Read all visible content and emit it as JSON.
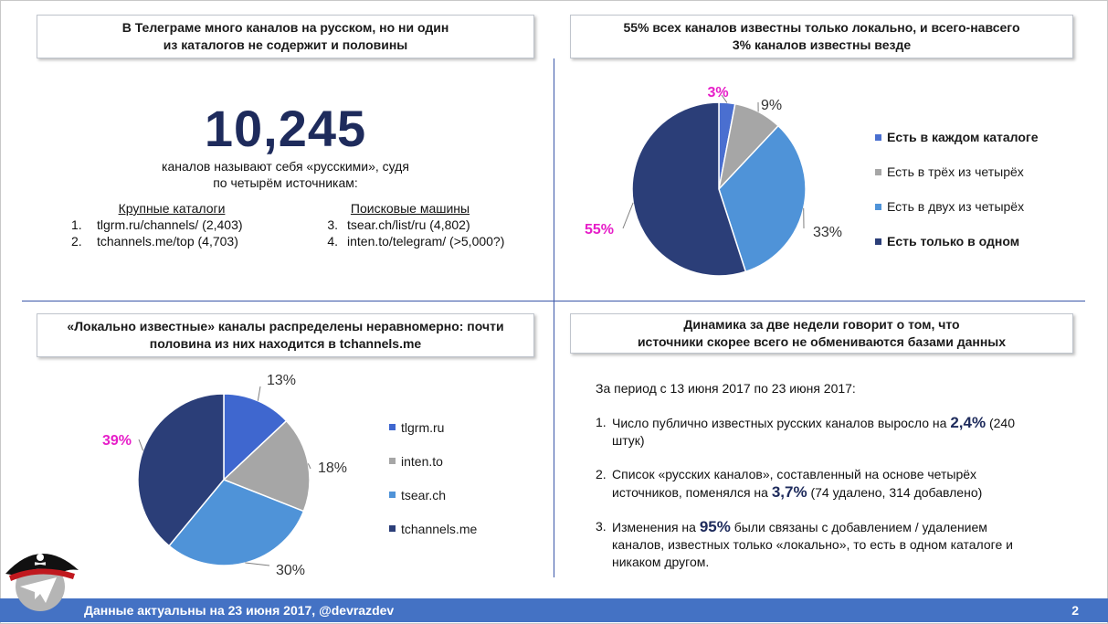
{
  "panel1": {
    "title_l1": "В Телеграме много каналов на русском, но ни один",
    "title_l2": "из каталогов не содержит и половины",
    "big_number": "10,245",
    "sub_l1": "каналов называют себя «русскими», судя",
    "sub_l2": "по четырём источникам:",
    "catalogs_header": "Крупные каталоги",
    "catalogs": [
      {
        "num": "1.",
        "text": "tlgrm.ru/channels/ (2,403)"
      },
      {
        "num": "2.",
        "text": "tchannels.me/top (4,703)"
      }
    ],
    "search_header": "Поисковые машины",
    "search": [
      {
        "num": "3.",
        "text": "tsear.ch/list/ru (4,802)"
      },
      {
        "num": "4.",
        "text": "inten.to/telegram/ (>5,000?)"
      }
    ]
  },
  "panel2": {
    "title_l1": "55% всех каналов известны только локально, и всего-навсего",
    "title_l2": "3% каналов известны везде"
  },
  "panel3": {
    "title_l1": "«Локально известные» каналы распределены неравномерно: почти",
    "title_l2": "половина из них находится в tchannels.me"
  },
  "panel4": {
    "title_l1": "Динамика за две недели говорит о том, что",
    "title_l2": "источники скорее всего не обмениваются базами данных",
    "intro": "За период с 13 июня 2017 по 23 июня 2017:",
    "items": [
      {
        "num": "1.",
        "pre": "Число публично известных русских каналов выросло на ",
        "hl": "2,4%",
        "post": " (240 штук)"
      },
      {
        "num": "2.",
        "pre": "Список «русских каналов», составленный на основе четырёх источников, поменялся на ",
        "hl": "3,7%",
        "post": " (74 удалено, 314 добавлено)"
      },
      {
        "num": "3.",
        "pre": "Изменения на ",
        "hl": "95%",
        "post": " были связаны с добавлением / удалением каналов, известных только «локально», то есть в одном каталоге и никаком другом."
      }
    ]
  },
  "footer": {
    "text": "Данные актуальны на 23 июня 2017, @devrazdev",
    "page": "2"
  },
  "chart_data": [
    {
      "type": "pie",
      "categories": [
        "Есть в каждом каталоге",
        "Есть в трёх из четырёх",
        "Есть в двух из четырёх",
        "Есть только в одном"
      ],
      "values": [
        3,
        9,
        33,
        55
      ],
      "labels": [
        "3%",
        "9%",
        "33%",
        "55%"
      ],
      "colors": [
        "#4a6fd0",
        "#a6a6a6",
        "#4f93d8",
        "#2b3e78"
      ],
      "legend_bold": [
        true,
        false,
        false,
        true
      ],
      "legend_position": "right"
    },
    {
      "type": "pie",
      "categories": [
        "tlgrm.ru",
        "inten.to",
        "tsear.ch",
        "tchannels.me"
      ],
      "values": [
        13,
        18,
        30,
        39
      ],
      "labels": [
        "13%",
        "18%",
        "30%",
        "39%"
      ],
      "colors": [
        "#3f67cf",
        "#a6a6a6",
        "#4f93d8",
        "#2b3e78"
      ],
      "legend_position": "right"
    }
  ]
}
